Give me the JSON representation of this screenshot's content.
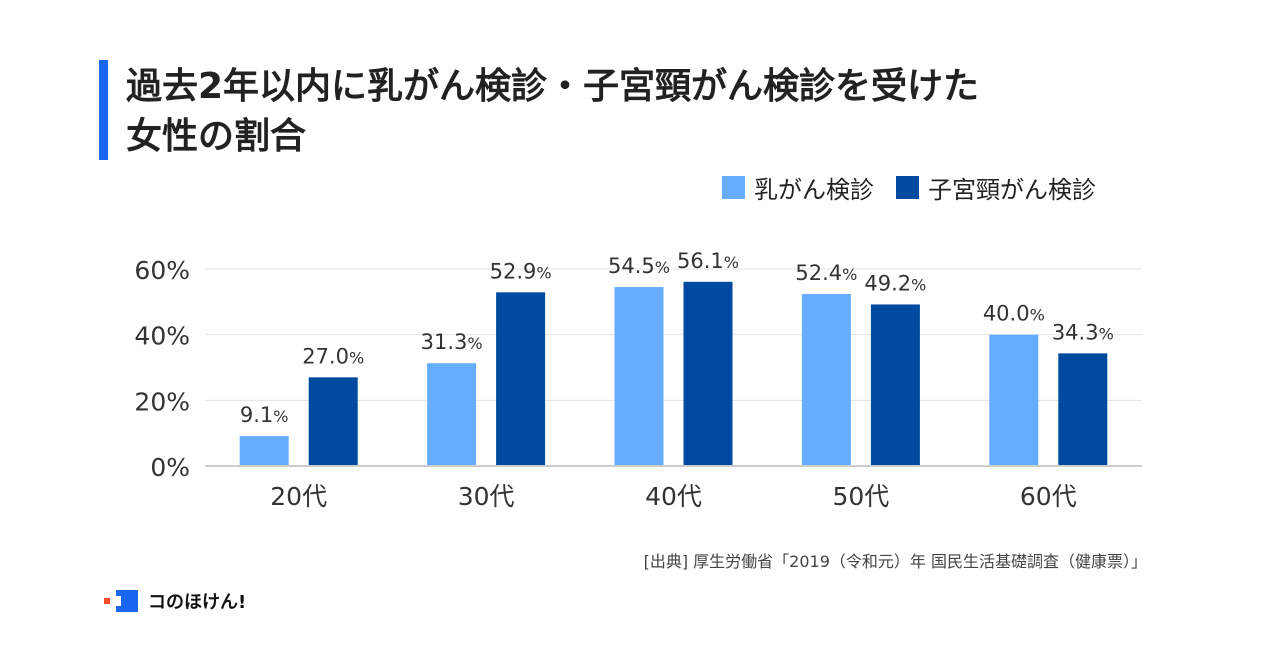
{
  "title_lines": [
    "過去2年以内に乳がん検診・子宮頸がん検診を受けた",
    "女性の割合"
  ],
  "source": "[出典] 厚生労働省「2019（令和元）年 国民生活基礎調査（健康票）」",
  "brand": "コのほけん!",
  "colors": {
    "accent": "#1a66f0",
    "breast": "#66adff",
    "cervical": "#004a9f",
    "brand_dot": "#ff4a2a"
  },
  "chart_data": {
    "type": "bar",
    "categories": [
      "20代",
      "30代",
      "40代",
      "50代",
      "60代"
    ],
    "series": [
      {
        "name": "乳がん検診",
        "values": [
          9.1,
          31.3,
          54.5,
          52.4,
          40.0
        ],
        "labels": [
          "9.1",
          "31.3",
          "54.5",
          "52.4",
          "40.0"
        ],
        "color": "#66adff"
      },
      {
        "name": "子宮頸がん検診",
        "values": [
          27.0,
          52.9,
          56.1,
          49.2,
          34.3
        ],
        "labels": [
          "27.0",
          "52.9",
          "56.1",
          "49.2",
          "34.3"
        ],
        "color": "#004a9f"
      }
    ],
    "value_suffix": "%",
    "yticks": [
      "0%",
      "20%",
      "40%",
      "60%"
    ],
    "ytick_values": [
      0,
      20,
      40,
      60
    ],
    "ylim": [
      0,
      60
    ],
    "grid": true,
    "legend_position": "top-right"
  }
}
